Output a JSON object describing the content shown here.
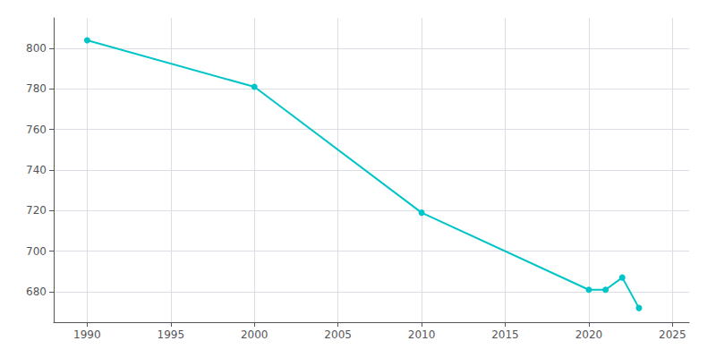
{
  "chart_data": {
    "type": "line",
    "x": [
      1990,
      2000,
      2010,
      2020,
      2021,
      2022,
      2023
    ],
    "values": [
      804,
      781,
      719,
      681,
      681,
      687,
      672
    ],
    "color": "#00C5C8",
    "marker": "circle",
    "xlim": [
      1988,
      2026
    ],
    "ylim": [
      665,
      815
    ],
    "xticks": [
      1990,
      1995,
      2000,
      2005,
      2010,
      2015,
      2020,
      2025
    ],
    "yticks": [
      680,
      700,
      720,
      740,
      760,
      780,
      800
    ],
    "grid": true
  }
}
